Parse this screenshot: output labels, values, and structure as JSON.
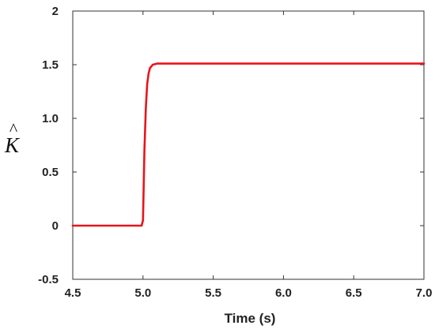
{
  "chart_data": {
    "type": "line",
    "title": "",
    "xlabel": "Time (s)",
    "ylabel": "K",
    "ylabel_accent": "^",
    "xlim": [
      4.5,
      7.0
    ],
    "ylim": [
      -0.5,
      2.0
    ],
    "xticks": [
      4.5,
      5.0,
      5.5,
      6.0,
      6.5,
      7.0
    ],
    "xtick_labels": [
      "4.5",
      "5.0",
      "5.5",
      "6.0",
      "6.5",
      "7.0"
    ],
    "yticks": [
      -0.5,
      0,
      0.5,
      1.0,
      1.5,
      2.0
    ],
    "ytick_labels": [
      "-0.5",
      "0",
      "0.5",
      "1.0",
      "1.5",
      "2"
    ],
    "grid": false,
    "legend": "none",
    "series": [
      {
        "color": "#e8141c",
        "x": [
          4.5,
          4.9,
          4.99,
          5.0,
          5.01,
          5.02,
          5.03,
          5.04,
          5.05,
          5.07,
          5.1,
          5.2,
          5.5,
          6.0,
          6.5,
          7.0
        ],
        "y": [
          0,
          0,
          0,
          0.05,
          0.7,
          1.1,
          1.32,
          1.42,
          1.47,
          1.5,
          1.51,
          1.51,
          1.51,
          1.51,
          1.51,
          1.51
        ]
      }
    ]
  }
}
